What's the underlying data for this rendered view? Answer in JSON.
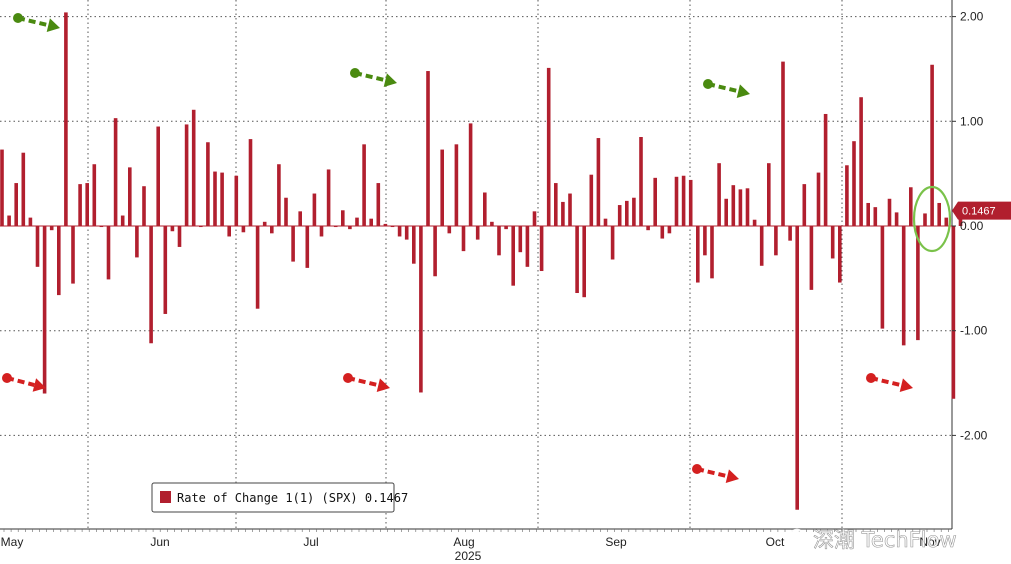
{
  "chart_data": {
    "type": "bar",
    "title": "",
    "year_label": "2025",
    "month_labels": [
      "May",
      "Jun",
      "Jul",
      "Aug",
      "Sep",
      "Oct",
      "Nov"
    ],
    "y_ticks": [
      2.0,
      1.0,
      0.0,
      -1.0,
      -2.0
    ],
    "y_tick_labels": [
      "2.00",
      "1.00",
      "0.00",
      "-1.00",
      "-2.00"
    ],
    "ylim": [
      -2.75,
      2.1
    ],
    "grid": true,
    "legend_position": "bottom-left",
    "legend_label": "Rate of Change 1(1) (SPX) 0.1467",
    "last_value_label": "0.1467",
    "bar_color": "#b11f2e",
    "values": [
      0.73,
      0.1,
      0.41,
      0.7,
      0.08,
      -0.39,
      -1.6,
      -0.04,
      -0.66,
      2.04,
      -0.55,
      0.4,
      0.41,
      0.59,
      -0.01,
      -0.51,
      1.03,
      0.1,
      0.56,
      -0.3,
      0.38,
      -1.12,
      0.95,
      -0.84,
      -0.05,
      -0.2,
      0.97,
      1.11,
      -0.01,
      0.8,
      0.52,
      0.51,
      -0.1,
      0.48,
      -0.06,
      0.83,
      -0.79,
      0.04,
      -0.07,
      0.59,
      0.27,
      -0.34,
      0.14,
      -0.4,
      0.31,
      -0.1,
      0.54,
      -0.01,
      0.15,
      -0.03,
      0.08,
      0.78,
      0.07,
      0.41,
      0.02,
      -0.01,
      -0.1,
      -0.13,
      -0.36,
      -1.59,
      1.48,
      -0.48,
      0.73,
      -0.07,
      0.78,
      -0.24,
      0.98,
      -0.13,
      0.32,
      0.04,
      -0.28,
      -0.03,
      -0.57,
      -0.25,
      -0.39,
      0.14,
      -0.43,
      1.51,
      0.41,
      0.23,
      0.31,
      -0.64,
      -0.68,
      0.49,
      0.84,
      0.07,
      -0.32,
      0.2,
      0.24,
      0.27,
      0.85,
      -0.04,
      0.46,
      -0.12,
      -0.07,
      0.47,
      0.48,
      0.44,
      -0.54,
      -0.28,
      -0.5,
      0.6,
      0.26,
      0.39,
      0.35,
      0.36,
      0.06,
      -0.38,
      0.6,
      -0.28,
      1.57,
      -0.14,
      -2.71,
      0.4,
      -0.61,
      0.51,
      1.07,
      -0.31,
      -0.54,
      0.58,
      0.81,
      1.23,
      0.22,
      0.18,
      -0.98,
      0.26,
      0.13,
      -1.14,
      0.37,
      -1.09,
      0.12,
      1.54,
      0.22,
      0.08,
      -1.65,
      0.1467
    ]
  },
  "watermark_text": "深潮 TechFlow",
  "arrow_colors": {
    "up": "#4a8a10",
    "down": "#d42020"
  },
  "highlight_circle_color": "#7ac24a"
}
